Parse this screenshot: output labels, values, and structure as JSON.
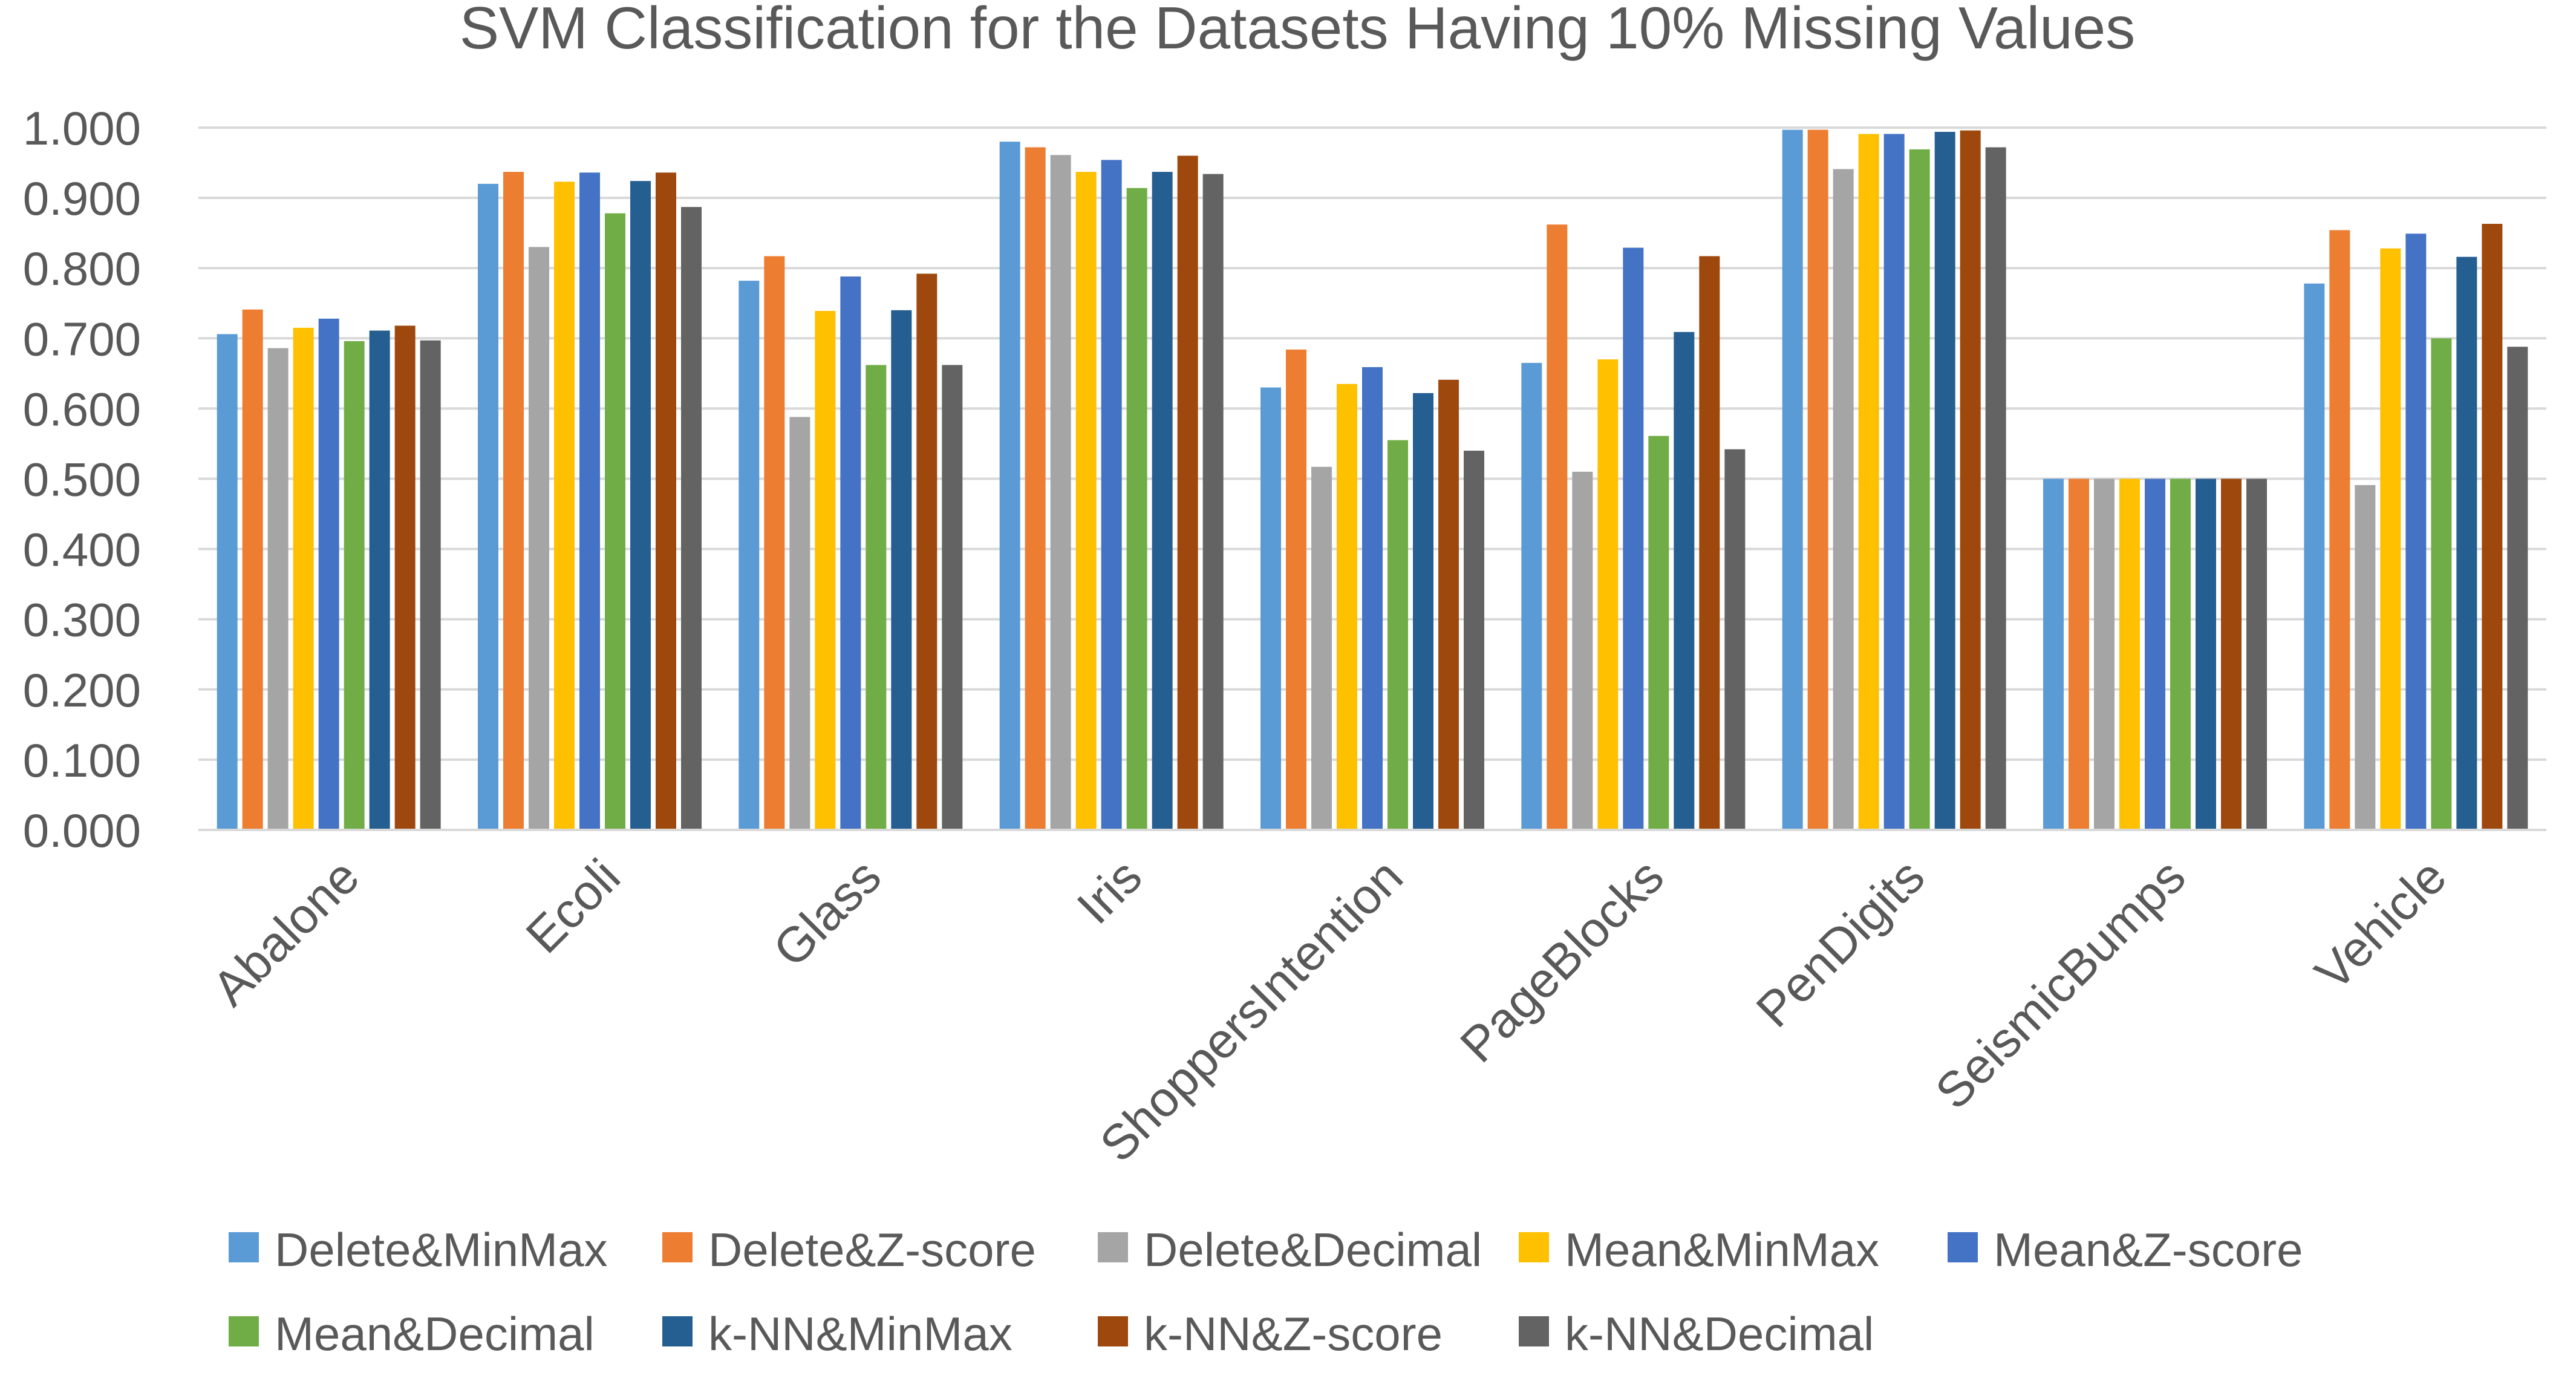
{
  "chart_data": {
    "type": "bar",
    "title": "SVM Classification for the Datasets Having 10% Missing Values",
    "xlabel": "",
    "ylabel": "",
    "ylim": [
      0,
      1.0
    ],
    "yticks": [
      "0.000",
      "0.100",
      "0.200",
      "0.300",
      "0.400",
      "0.500",
      "0.600",
      "0.700",
      "0.800",
      "0.900",
      "1.000"
    ],
    "grid": true,
    "legend_position": "bottom",
    "categories": [
      "Abalone",
      "Ecoli",
      "Glass",
      "Iris",
      "ShoppersIntention",
      "PageBlocks",
      "PenDigits",
      "SeismicBumps",
      "Vehicle"
    ],
    "series": [
      {
        "name": "Delete&MinMax",
        "color": "#5B9BD5",
        "values": [
          0.706,
          0.92,
          0.782,
          0.98,
          0.63,
          0.665,
          0.997,
          0.5,
          0.778
        ]
      },
      {
        "name": "Delete&Z-score",
        "color": "#ED7D31",
        "values": [
          0.741,
          0.937,
          0.817,
          0.972,
          0.684,
          0.862,
          0.997,
          0.5,
          0.854
        ]
      },
      {
        "name": "Delete&Decimal",
        "color": "#A5A5A5",
        "values": [
          0.686,
          0.83,
          0.588,
          0.961,
          0.517,
          0.51,
          0.941,
          0.5,
          0.491
        ]
      },
      {
        "name": "Mean&MinMax",
        "color": "#FFC000",
        "values": [
          0.715,
          0.923,
          0.739,
          0.937,
          0.635,
          0.67,
          0.991,
          0.5,
          0.828
        ]
      },
      {
        "name": "Mean&Z-score",
        "color": "#4472C4",
        "values": [
          0.728,
          0.936,
          0.788,
          0.954,
          0.659,
          0.829,
          0.991,
          0.5,
          0.849
        ]
      },
      {
        "name": "Mean&Decimal",
        "color": "#70AD47",
        "values": [
          0.696,
          0.878,
          0.662,
          0.914,
          0.555,
          0.561,
          0.969,
          0.5,
          0.7
        ]
      },
      {
        "name": "k-NN&MinMax",
        "color": "#255E91",
        "values": [
          0.711,
          0.924,
          0.74,
          0.937,
          0.622,
          0.709,
          0.994,
          0.5,
          0.816
        ]
      },
      {
        "name": "k-NN&Z-score",
        "color": "#9E480E",
        "values": [
          0.718,
          0.936,
          0.792,
          0.96,
          0.641,
          0.817,
          0.996,
          0.5,
          0.863
        ]
      },
      {
        "name": "k-NN&Decimal",
        "color": "#636363",
        "values": [
          0.697,
          0.887,
          0.662,
          0.934,
          0.54,
          0.542,
          0.972,
          0.5,
          0.688
        ]
      }
    ]
  }
}
